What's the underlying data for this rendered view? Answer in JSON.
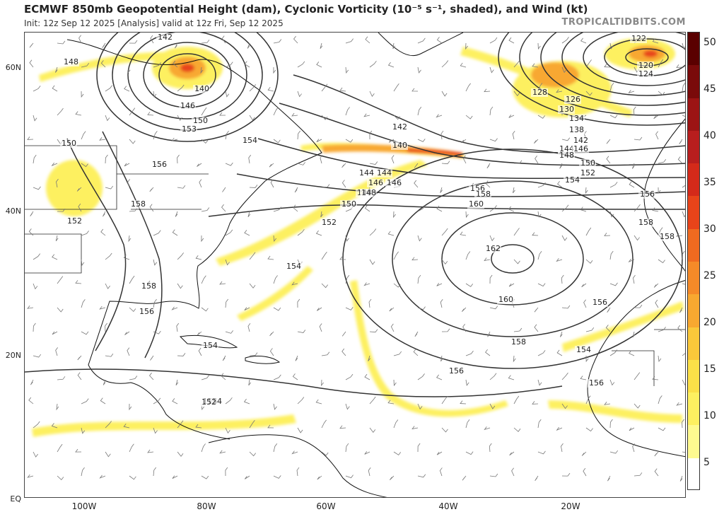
{
  "header": {
    "title": "ECMWF 850mb Geopotential Height (dam), Cyclonic Vorticity (10⁻⁵ s⁻¹, shaded), and Wind (kt)",
    "subtitle": "Init: 12z Sep 12 2025   [Analysis]   valid at 12z Fri, Sep 12 2025",
    "brand": "TROPICALTIDBITS.COM"
  },
  "axes": {
    "lat_labels": [
      "60N",
      "40N",
      "20N",
      "EQ"
    ],
    "lon_labels": [
      "100W",
      "80W",
      "60W",
      "40W",
      "20W"
    ]
  },
  "colorbar": {
    "labels": [
      "50",
      "45",
      "40",
      "35",
      "30",
      "25",
      "20",
      "15",
      "10",
      "5"
    ],
    "colors": [
      "#5a0000",
      "#7a0a0a",
      "#9c1414",
      "#b81e1e",
      "#d42a1a",
      "#e8441a",
      "#f06a20",
      "#f58a28",
      "#f8a830",
      "#fac83a",
      "#fbe048",
      "#fdf060",
      "#fefa90",
      "#ffffff"
    ]
  },
  "contour_labels": [
    "142",
    "148",
    "140",
    "146",
    "150",
    "153",
    "154",
    "150",
    "156",
    "158",
    "152",
    "156",
    "158",
    "154",
    "152",
    "146",
    "148",
    "144",
    "142",
    "140",
    "144",
    "146",
    "148",
    "150",
    "152",
    "154",
    "156",
    "158",
    "160",
    "162",
    "160",
    "158",
    "156",
    "122",
    "120",
    "124",
    "128",
    "126",
    "130",
    "134",
    "138",
    "142",
    "144",
    "146",
    "148",
    "150",
    "152",
    "154",
    "156",
    "158",
    "158",
    "156",
    "154",
    "156",
    "154",
    "154",
    "152"
  ],
  "map": {
    "vorticity_colors": {
      "light": "#fdf060",
      "mid": "#f8a830",
      "high": "#e8441a"
    },
    "contour_color": "#333333",
    "coast_color": "#111111"
  }
}
